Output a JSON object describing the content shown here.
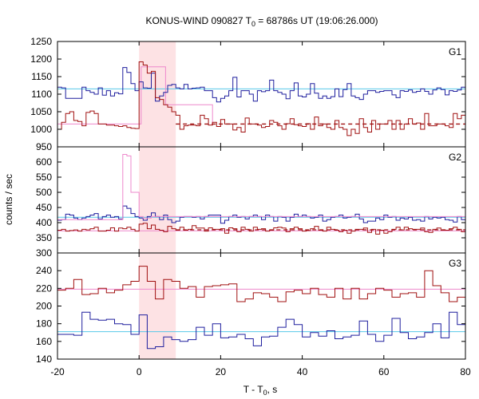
{
  "chart_data": {
    "type": "line",
    "title_main": "KONUS-WIND 090827 T",
    "title_sub": "0",
    "title_rest": " = 68786s UT (19:06:26.000)",
    "xlabel_main": "T - T",
    "xlabel_sub": "0",
    "xlabel_rest": ", s",
    "ylabel": "counts / sec",
    "xlim": [
      -20,
      80
    ],
    "x_ticks": [
      -20,
      0,
      20,
      40,
      60,
      80
    ],
    "highlight_interval": [
      0,
      9
    ],
    "colors": {
      "blue": "#1f1f9e",
      "red": "#a01010",
      "cyan": "#56c8e8",
      "pink": "#ee88cc",
      "highlight": "#fde2e4"
    },
    "panels": [
      {
        "label": "G1",
        "ylim": [
          950,
          1250
        ],
        "y_ticks": [
          950,
          1000,
          1050,
          1100,
          1150,
          1200,
          1250
        ],
        "series": [
          {
            "color": "blue",
            "values": [
              1120,
              1118,
              1088,
              1088,
              1088,
              1088,
              1120,
              1110,
              1105,
              1100,
              1118,
              1097,
              1110,
              1095,
              1104,
              1101,
              1176,
              1162,
              1130,
              1110,
              1135,
              1118,
              1117,
              1160,
              1080,
              1095,
              1105,
              1125,
              1128,
              1118,
              1115,
              1128,
              1115,
              1117,
              1118,
              1120,
              1110,
              1110,
              1090,
              1078,
              1088,
              1095,
              1110,
              1148,
              1092,
              1110,
              1110,
              1100,
              1080,
              1110,
              1107,
              1110,
              1140,
              1110,
              1105,
              1100,
              1087,
              1110,
              1132,
              1095,
              1092,
              1100,
              1130,
              1103,
              1088,
              1095,
              1088,
              1093,
              1115,
              1093,
              1113,
              1130,
              1095,
              1090,
              1085,
              1100,
              1110,
              1110,
              1105,
              1108,
              1110,
              1110,
              1098,
              1090,
              1110,
              1108,
              1112,
              1105,
              1108,
              1115,
              1108,
              1100,
              1112,
              1118,
              1113,
              1098,
              1110,
              1108,
              1112,
              1120
            ]
          },
          {
            "color": "red",
            "values": [
              1000,
              1020,
              1045,
              1050,
              1025,
              1022,
              1010,
              1048,
              1052,
              1045,
              1015,
              1015,
              1012,
              1012,
              1010,
              1008,
              1010,
              1005,
              1003,
              1002,
              1192,
              1183,
              1160,
              1165,
              1090,
              1085,
              1070,
              1063,
              1050,
              1040,
              1000,
              1010,
              1012,
              1012,
              1010,
              1040,
              1030,
              1012,
              1020,
              1008,
              1028,
              1015,
              1015,
              998,
              1005,
              992,
              1032,
              1015,
              1015,
              1012,
              1005,
              1008,
              1025,
              1020,
              1010,
              1000,
              1016,
              1030,
              1013,
              1010,
              1008,
              1016,
              1000,
              1035,
              1010,
              1015,
              1005,
              1000,
              1025,
              1005,
              1000,
              982,
              1000,
              988,
              1030,
              1005,
              992,
              1025,
              1000,
              1015,
              1015,
              1025,
              1000,
              1025,
              1000,
              1015,
              1030,
              1015,
              1018,
              1000,
              1045,
              1010,
              1010,
              1015,
              1015,
              1010,
              1005,
              1045,
              1030,
              1040
            ]
          }
        ],
        "fits": [
          {
            "color": "cyan",
            "style": "solid",
            "points": [
              [
                -20,
                1115
              ],
              [
                80,
                1115
              ]
            ]
          },
          {
            "color": "red",
            "style": "dashed",
            "points": [
              [
                9,
                1015
              ],
              [
                80,
                1015
              ]
            ]
          },
          {
            "color": "pink",
            "style": "step",
            "points": [
              [
                -20,
                1015
              ],
              [
                0.5,
                1015
              ],
              [
                0.5,
                1178
              ],
              [
                6.5,
                1178
              ],
              [
                6.5,
                1070
              ],
              [
                18,
                1070
              ],
              [
                18,
                1015
              ]
            ]
          }
        ]
      },
      {
        "label": "G2",
        "ylim": [
          300,
          650
        ],
        "y_ticks": [
          300,
          350,
          400,
          450,
          500,
          550,
          600
        ],
        "series": [
          {
            "color": "blue",
            "values": [
              408,
              410,
              428,
              425,
              415,
              410,
              415,
              420,
              425,
              430,
              412,
              420,
              425,
              418,
              420,
              412,
              455,
              447,
              430,
              420,
              415,
              408,
              420,
              432,
              420,
              410,
              425,
              410,
              400,
              405,
              418,
              420,
              420,
              418,
              420,
              412,
              420,
              425,
              425,
              425,
              398,
              408,
              420,
              425,
              418,
              420,
              412,
              420,
              425,
              420,
              410,
              425,
              420,
              405,
              420,
              418,
              405,
              418,
              428,
              420,
              425,
              420,
              415,
              418,
              425,
              405,
              410,
              418,
              420,
              425,
              415,
              418,
              420,
              428,
              412,
              400,
              405,
              405,
              415,
              410,
              425,
              418,
              420,
              408,
              415,
              412,
              418,
              408,
              410,
              405,
              420,
              412,
              418,
              415,
              418,
              410,
              408,
              402,
              420,
              410
            ]
          },
          {
            "color": "red",
            "values": [
              375,
              378,
              372,
              374,
              376,
              372,
              378,
              376,
              380,
              385,
              372,
              372,
              375,
              383,
              372,
              382,
              380,
              385,
              378,
              372,
              395,
              398,
              380,
              392,
              378,
              375,
              370,
              388,
              380,
              375,
              385,
              375,
              378,
              390,
              382,
              382,
              372,
              383,
              378,
              378,
              380,
              365,
              383,
              380,
              370,
              385,
              378,
              372,
              385,
              378,
              380,
              372,
              375,
              383,
              385,
              382,
              370,
              380,
              385,
              380,
              372,
              374,
              380,
              388,
              375,
              372,
              385,
              378,
              375,
              370,
              375,
              365,
              372,
              378,
              378,
              382,
              368,
              378,
              362,
              375,
              365,
              370,
              378,
              385,
              376,
              385,
              380,
              378,
              378,
              382,
              370,
              368,
              378,
              382,
              375,
              375,
              380,
              385,
              378,
              370
            ]
          },
          {
            "color": "pink",
            "values": [
              410,
              410,
              410,
              410,
              410,
              410,
              410,
              410,
              410,
              410,
              410,
              410,
              410,
              410,
              410,
              410,
              625,
              620,
              500,
              500,
              420,
              415,
              415,
              420,
              420,
              420,
              420,
              420,
              420,
              420,
              420,
              420,
              420,
              420,
              420,
              420,
              420,
              420,
              420,
              420,
              420,
              420,
              420,
              420,
              420,
              420,
              420,
              420,
              420,
              420,
              420,
              420,
              420,
              420,
              420,
              420,
              420,
              420,
              420,
              420,
              420,
              420,
              420,
              420,
              420,
              420,
              420,
              420,
              420,
              420,
              420,
              420,
              420,
              420,
              420,
              420,
              420,
              420,
              420,
              420,
              420,
              420,
              420,
              420,
              420,
              420,
              420,
              420,
              420,
              420,
              420,
              420,
              420,
              420,
              420,
              420,
              420,
              420,
              420,
              420
            ]
          }
        ],
        "fits": [
          {
            "color": "cyan",
            "style": "solid",
            "points": [
              [
                -20,
                418
              ],
              [
                80,
                418
              ]
            ]
          },
          {
            "color": "red",
            "style": "dashed",
            "points": [
              [
                9,
                376
              ],
              [
                80,
                376
              ]
            ]
          },
          {
            "color": "pink",
            "style": "solid",
            "points": [
              [
                -20,
                373
              ],
              [
                80,
                373
              ]
            ]
          }
        ]
      },
      {
        "label": "G3",
        "ylim": [
          140,
          260
        ],
        "y_ticks": [
          140,
          160,
          180,
          200,
          220,
          240
        ],
        "series": [
          {
            "color": "blue",
            "values": [
              168,
              168,
              168,
              168,
              167,
              167,
              193,
              193,
              185,
              185,
              184,
              184,
              185,
              185,
              180,
              180,
              179,
              179,
              168,
              168,
              190,
              190,
              152,
              152,
              154,
              154,
              165,
              165,
              162,
              162,
              160,
              160,
              162,
              162,
              176,
              176,
              167,
              167,
              180,
              180,
              164,
              164,
              165,
              165,
              168,
              168,
              163,
              163,
              155,
              155,
              165,
              165,
              166,
              166,
              176,
              176,
              185,
              185,
              179,
              179,
              165,
              165,
              170,
              170,
              166,
              166,
              172,
              172,
              163,
              163,
              165,
              165,
              167,
              167,
              183,
              183,
              168,
              168,
              160,
              160,
              167,
              167,
              186,
              186,
              170,
              170,
              163,
              163,
              165,
              165,
              170,
              170,
              180,
              180,
              164,
              164,
              193,
              193,
              179,
              179
            ]
          },
          {
            "color": "red",
            "values": [
              218,
              218,
              220,
              220,
              230,
              230,
              213,
              213,
              214,
              214,
              220,
              220,
              215,
              215,
              218,
              218,
              224,
              224,
              228,
              228,
              245,
              245,
              228,
              228,
              208,
              208,
              230,
              230,
              228,
              228,
              220,
              220,
              222,
              222,
              210,
              210,
              222,
              222,
              223,
              223,
              224,
              224,
              225,
              225,
              205,
              205,
              208,
              208,
              215,
              215,
              214,
              214,
              210,
              210,
              205,
              205,
              216,
              216,
              218,
              218,
              214,
              214,
              220,
              220,
              213,
              213,
              210,
              210,
              220,
              220,
              208,
              208,
              220,
              220,
              208,
              208,
              214,
              214,
              220,
              220,
              218,
              218,
              210,
              210,
              214,
              214,
              215,
              215,
              210,
              210,
              240,
              240,
              223,
              223,
              215,
              215,
              205,
              205,
              210,
              210
            ]
          }
        ],
        "fits": [
          {
            "color": "cyan",
            "style": "solid",
            "points": [
              [
                -20,
                171
              ],
              [
                80,
                171
              ]
            ]
          },
          {
            "color": "pink",
            "style": "solid",
            "points": [
              [
                -20,
                219
              ],
              [
                80,
                219
              ]
            ]
          }
        ]
      }
    ]
  }
}
